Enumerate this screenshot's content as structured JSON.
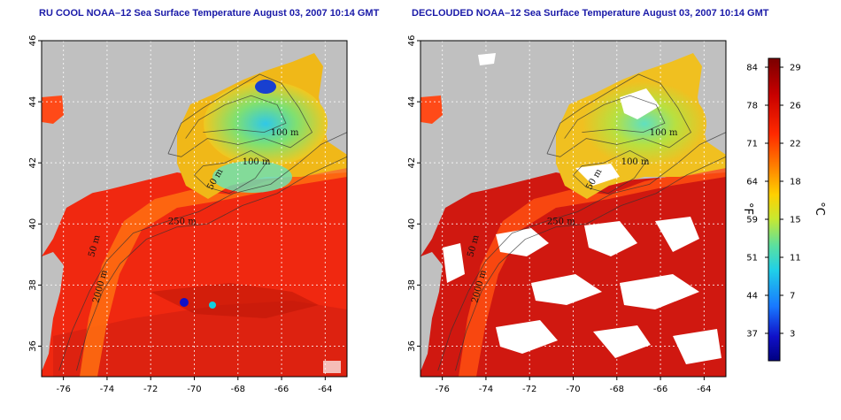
{
  "titles": {
    "left": "RU COOL NOAA–12 Sea Surface Temperature August 03, 2007 10:14 GMT",
    "right": "DECLOUDED NOAA–12 Sea Surface Temperature August 03, 2007 10:14 GMT"
  },
  "map": {
    "lon_range": [
      -77,
      -63
    ],
    "lat_range": [
      35,
      46
    ],
    "lon_ticks": [
      -76,
      -74,
      -72,
      -70,
      -68,
      -66,
      -64
    ],
    "lat_ticks": [
      36,
      38,
      40,
      42,
      44,
      46
    ],
    "grid": "dotted white",
    "isobath_labels": [
      "100 m",
      "100 m",
      "50 m",
      "250 m",
      "50 m",
      "2000 m"
    ]
  },
  "colorbar": {
    "fahrenheit_ticks": [
      "84",
      "78",
      "71",
      "64",
      "59",
      "51",
      "44",
      "37"
    ],
    "celsius_ticks": [
      "29",
      "26",
      "22",
      "18",
      "15",
      "11",
      "7",
      "3"
    ],
    "unit_f": "°F",
    "unit_c": "°C",
    "colors": [
      "#7a0000",
      "#c80000",
      "#ff2a00",
      "#ff7a00",
      "#ffd000",
      "#c8e830",
      "#5ae0a0",
      "#20d0e8",
      "#1878ff",
      "#1010c8",
      "#000080"
    ]
  }
}
